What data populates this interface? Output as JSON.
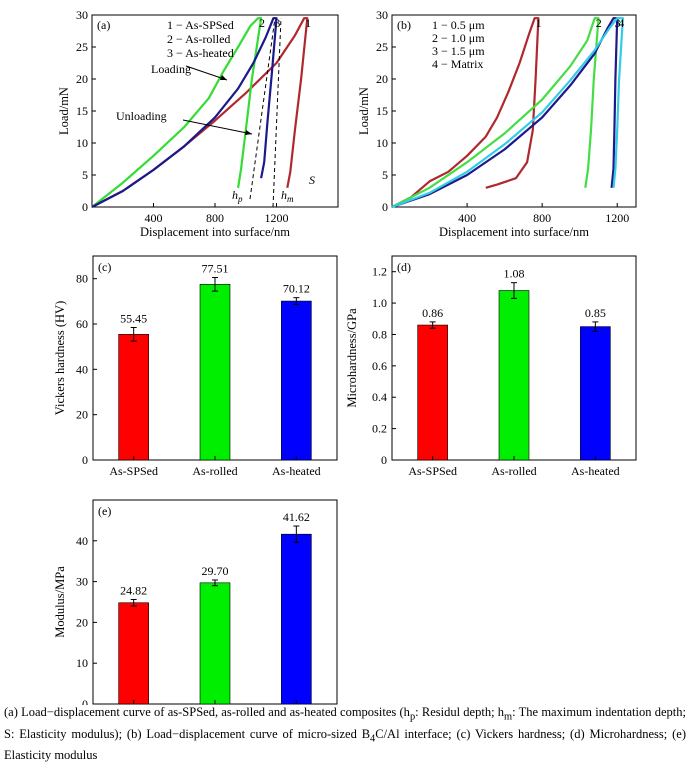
{
  "colors": {
    "red": "#ff0000",
    "green": "#00ee00",
    "blue": "#0000ff",
    "darkred": "#b0282e",
    "navy": "#1a1a8c",
    "lightgreen": "#4cd94c",
    "cyan": "#33cce6"
  },
  "chart_data": [
    {
      "type": "line",
      "panel_label": "(a)",
      "xlabel": "Displacement into surface/nm",
      "ylabel": "Load/mN",
      "xlim": [
        0,
        1600
      ],
      "ylim": [
        0,
        30
      ],
      "xticks": [
        "400",
        "800",
        "1200"
      ],
      "yticks": [
        "0",
        "5",
        "10",
        "15",
        "20",
        "25",
        "30"
      ],
      "legend": [
        "1 − As-SPSed",
        "2 − As-rolled",
        "3 − As-heated"
      ],
      "annotations": {
        "loading": "Loading",
        "unloading": "Unloading",
        "hp": "h",
        "hp_sub": "p",
        "hm": "h",
        "hm_sub": "m",
        "s": "S"
      },
      "series": [
        {
          "name": "1",
          "color": "#b0282e",
          "points": [
            [
              0,
              0
            ],
            [
              200,
              2.5
            ],
            [
              400,
              5.8
            ],
            [
              600,
              9.5
            ],
            [
              800,
              13.5
            ],
            [
              1000,
              17.8
            ],
            [
              1200,
              22.5
            ],
            [
              1320,
              26.8
            ],
            [
              1380,
              29.5
            ],
            [
              1400,
              29.5
            ],
            [
              1360,
              20
            ],
            [
              1320,
              12
            ],
            [
              1290,
              5.5
            ],
            [
              1270,
              3
            ]
          ]
        },
        {
          "name": "2",
          "color": "#33dd33",
          "points": [
            [
              0,
              0
            ],
            [
              200,
              3.8
            ],
            [
              400,
              8
            ],
            [
              600,
              12.5
            ],
            [
              760,
              17
            ],
            [
              850,
              21
            ],
            [
              950,
              25
            ],
            [
              1030,
              28.3
            ],
            [
              1080,
              29.5
            ],
            [
              1100,
              29.5
            ],
            [
              1040,
              20
            ],
            [
              1000,
              12
            ],
            [
              970,
              6
            ],
            [
              950,
              3
            ]
          ]
        },
        {
          "name": "3",
          "color": "#1a1a8c",
          "points": [
            [
              0,
              0
            ],
            [
              200,
              2.5
            ],
            [
              400,
              5.8
            ],
            [
              600,
              9.5
            ],
            [
              800,
              14
            ],
            [
              950,
              18.5
            ],
            [
              1050,
              22.5
            ],
            [
              1130,
              26.5
            ],
            [
              1180,
              29.5
            ],
            [
              1200,
              29.5
            ],
            [
              1170,
              21
            ],
            [
              1140,
              13
            ],
            [
              1120,
              7
            ],
            [
              1100,
              4.5
            ]
          ]
        }
      ]
    },
    {
      "type": "line",
      "panel_label": "(b)",
      "xlabel": "Displacement into surface/nm",
      "ylabel": "Load/mN",
      "xlim": [
        0,
        1300
      ],
      "ylim": [
        0,
        30
      ],
      "xticks": [
        "400",
        "800",
        "1200"
      ],
      "yticks": [
        "0",
        "5",
        "10",
        "15",
        "20",
        "25",
        "30"
      ],
      "legend": [
        "1 − 0.5 μm",
        "2 − 1.0 μm",
        "3 − 1.5 μm",
        "4 − Matrix"
      ],
      "series": [
        {
          "name": "1",
          "color": "#b0282e",
          "points": [
            [
              0,
              0
            ],
            [
              100,
              1.5
            ],
            [
              200,
              4
            ],
            [
              300,
              5.5
            ],
            [
              400,
              8
            ],
            [
              500,
              11
            ],
            [
              560,
              14
            ],
            [
              620,
              18
            ],
            [
              680,
              22.5
            ],
            [
              730,
              27
            ],
            [
              760,
              29.5
            ],
            [
              780,
              29.5
            ],
            [
              765,
              20
            ],
            [
              750,
              12
            ],
            [
              720,
              7
            ],
            [
              660,
              4.5
            ],
            [
              560,
              3.5
            ],
            [
              500,
              3
            ]
          ]
        },
        {
          "name": "2",
          "color": "#44dd44",
          "points": [
            [
              0,
              0
            ],
            [
              200,
              3
            ],
            [
              400,
              7
            ],
            [
              600,
              11.5
            ],
            [
              800,
              16.8
            ],
            [
              950,
              22
            ],
            [
              1040,
              26
            ],
            [
              1080,
              29.5
            ],
            [
              1100,
              29.5
            ],
            [
              1075,
              20
            ],
            [
              1060,
              12
            ],
            [
              1045,
              6
            ],
            [
              1030,
              3
            ]
          ]
        },
        {
          "name": "3",
          "color": "#1a1a8c",
          "points": [
            [
              0,
              0
            ],
            [
              200,
              2
            ],
            [
              400,
              5
            ],
            [
              600,
              9
            ],
            [
              800,
              14
            ],
            [
              950,
              19
            ],
            [
              1080,
              24
            ],
            [
              1150,
              28
            ],
            [
              1180,
              29.5
            ],
            [
              1200,
              29.5
            ],
            [
              1190,
              20
            ],
            [
              1185,
              12
            ],
            [
              1180,
              6
            ],
            [
              1170,
              3
            ]
          ]
        },
        {
          "name": "4",
          "color": "#33cce6",
          "points": [
            [
              0,
              0
            ],
            [
              200,
              2.2
            ],
            [
              400,
              5.5
            ],
            [
              600,
              9.8
            ],
            [
              800,
              14.8
            ],
            [
              950,
              19.8
            ],
            [
              1080,
              24.5
            ],
            [
              1160,
              28
            ],
            [
              1200,
              29.5
            ],
            [
              1230,
              29.5
            ],
            [
              1210,
              20
            ],
            [
              1200,
              12
            ],
            [
              1190,
              6
            ],
            [
              1180,
              3
            ]
          ]
        }
      ]
    },
    {
      "type": "bar",
      "panel_label": "(c)",
      "ylabel": "Vickers hardness (HV)",
      "ylim": [
        0,
        90
      ],
      "yticks": [
        "0",
        "20",
        "40",
        "60",
        "80"
      ],
      "categories": [
        "As-SPSed",
        "As-rolled",
        "As-heated"
      ],
      "values": [
        55.45,
        77.51,
        70.12
      ],
      "labels": [
        "55.45",
        "77.51",
        "70.12"
      ],
      "errors": [
        3.0,
        3.0,
        1.5
      ]
    },
    {
      "type": "bar",
      "panel_label": "(d)",
      "ylabel": "Microhardness/GPa",
      "ylim": [
        0,
        1.3
      ],
      "yticks": [
        "0",
        "0.2",
        "0.4",
        "0.6",
        "0.8",
        "1.0",
        "1.2"
      ],
      "categories": [
        "As-SPSed",
        "As-rolled",
        "As-heated"
      ],
      "values": [
        0.86,
        1.08,
        0.85
      ],
      "labels": [
        "0.86",
        "1.08",
        "0.85"
      ],
      "errors": [
        0.02,
        0.05,
        0.03
      ]
    },
    {
      "type": "bar",
      "panel_label": "(e)",
      "ylabel": "Modulus/MPa",
      "ylim": [
        0,
        50
      ],
      "yticks": [
        "0",
        "10",
        "20",
        "30",
        "40"
      ],
      "categories": [
        "As-SPSed",
        "As-rolled",
        "As-heated"
      ],
      "values": [
        24.82,
        29.7,
        41.62
      ],
      "labels": [
        "24.82",
        "29.70",
        "41.62"
      ],
      "errors": [
        0.8,
        0.7,
        2.0
      ]
    }
  ],
  "caption": {
    "line1": "(a) Load−displacement curve of as-SPSed, as-rolled and as-heated composites (h",
    "hp_sub": "p",
    "line1b": ": Residul depth; h",
    "hm_sub": "m",
    "line1c": ": The maximum indentation depth;  S:  Elasticity modulus); (b) Load−displacement curve of micro-sized B",
    "b4c_sub": "4",
    "line1d": "C/Al interface; (c) Vickers hardness; (d) Microhardness; (e) Elasticity modulus"
  }
}
